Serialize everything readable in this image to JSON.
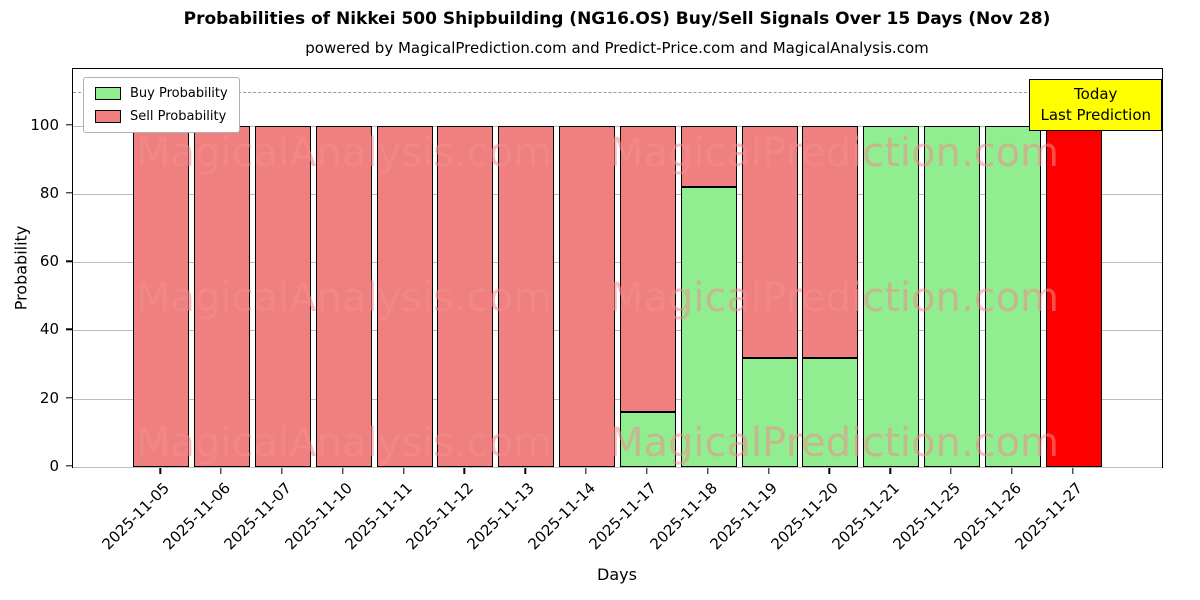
{
  "title": "Probabilities of Nikkei 500 Shipbuilding (NG16.OS) Buy/Sell Signals Over 15 Days (Nov 28)",
  "subtitle": "powered by MagicalPrediction.com and Predict-Price.com and MagicalAnalysis.com",
  "watermarks": [
    "MagicalAnalysis.com",
    "MagicalPrediction.com"
  ],
  "legend": [
    {
      "label": "Buy Probability",
      "color": "#90ee90"
    },
    {
      "label": "Sell Probability",
      "color": "#f08080"
    }
  ],
  "annotation": {
    "line1": "Today",
    "line2": "Last Prediction",
    "bg": "#ffff00"
  },
  "chart_data": {
    "type": "bar",
    "stacked": true,
    "title": "Probabilities of Nikkei 500 Shipbuilding (NG16.OS) Buy/Sell Signals Over 15 Days (Nov 28)",
    "xlabel": "Days",
    "ylabel": "Probability",
    "ylim": [
      0,
      116.6
    ],
    "yticks": [
      0,
      20,
      40,
      60,
      80,
      100
    ],
    "dashed_line_y": 110,
    "grid": true,
    "legend_position": "upper-left",
    "categories": [
      "2025-11-05",
      "2025-11-06",
      "2025-11-07",
      "2025-11-10",
      "2025-11-11",
      "2025-11-12",
      "2025-11-13",
      "2025-11-14",
      "2025-11-17",
      "2025-11-18",
      "2025-11-19",
      "2025-11-20",
      "2025-11-21",
      "2025-11-25",
      "2025-11-26",
      "2025-11-27"
    ],
    "series": [
      {
        "name": "Buy Probability",
        "color": "#90ee90",
        "values": [
          0,
          0,
          0,
          0,
          0,
          0,
          0,
          0,
          16,
          82,
          32,
          32,
          100,
          100,
          100,
          0
        ]
      },
      {
        "name": "Sell Probability",
        "color": "#f08080",
        "values": [
          100,
          100,
          100,
          100,
          100,
          100,
          100,
          100,
          84,
          18,
          68,
          68,
          0,
          0,
          0,
          0
        ]
      },
      {
        "name": "Today Last Prediction",
        "color": "#ff0000",
        "values": [
          0,
          0,
          0,
          0,
          0,
          0,
          0,
          0,
          0,
          0,
          0,
          0,
          0,
          0,
          0,
          100
        ]
      }
    ]
  }
}
